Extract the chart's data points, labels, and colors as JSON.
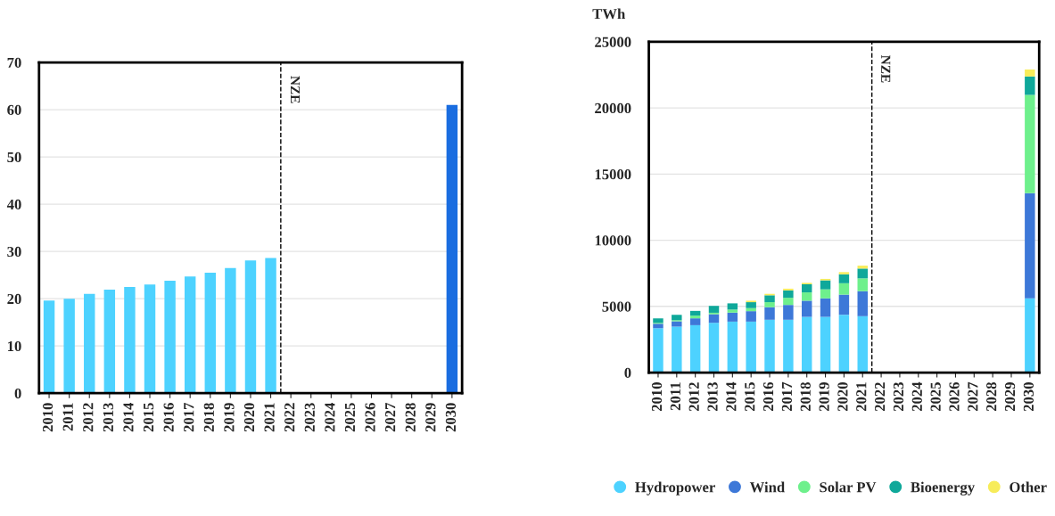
{
  "chart_data": [
    {
      "type": "bar",
      "categories": [
        "2010",
        "2011",
        "2012",
        "2013",
        "2014",
        "2015",
        "2016",
        "2017",
        "2018",
        "2019",
        "2020",
        "2021",
        "2022",
        "2023",
        "2024",
        "2025",
        "2026",
        "2027",
        "2028",
        "2029",
        "2030"
      ],
      "values": [
        19.6,
        20.0,
        21.0,
        21.9,
        22.5,
        23.0,
        23.8,
        24.7,
        25.5,
        26.5,
        28.1,
        28.6,
        null,
        null,
        null,
        null,
        null,
        null,
        null,
        null,
        61
      ],
      "colors": [
        "#4dd2ff",
        "#4dd2ff",
        "#4dd2ff",
        "#4dd2ff",
        "#4dd2ff",
        "#4dd2ff",
        "#4dd2ff",
        "#4dd2ff",
        "#4dd2ff",
        "#4dd2ff",
        "#4dd2ff",
        "#4dd2ff",
        "#4dd2ff",
        "#4dd2ff",
        "#4dd2ff",
        "#4dd2ff",
        "#4dd2ff",
        "#4dd2ff",
        "#4dd2ff",
        "#4dd2ff",
        "#1a6de0"
      ],
      "ylim": [
        0,
        70
      ],
      "yticks": [
        0,
        10,
        20,
        30,
        40,
        50,
        60,
        70
      ],
      "grid": "y",
      "ref_lines": [
        {
          "axis": "x",
          "value": "2022",
          "label": "NZE",
          "line_style": "dashed",
          "color": "#000000"
        }
      ]
    },
    {
      "type": "bar",
      "stacked": true,
      "ylabel": "TWh",
      "categories": [
        "2010",
        "2011",
        "2012",
        "2013",
        "2014",
        "2015",
        "2016",
        "2017",
        "2018",
        "2019",
        "2020",
        "2021",
        "2022",
        "2023",
        "2024",
        "2025",
        "2026",
        "2027",
        "2028",
        "2029",
        "2030"
      ],
      "series": [
        {
          "name": "Hydropower",
          "color": "#4dd2ff",
          "values": [
            3350,
            3470,
            3580,
            3760,
            3850,
            3850,
            3990,
            3990,
            4210,
            4210,
            4370,
            4260,
            null,
            null,
            null,
            null,
            null,
            null,
            null,
            null,
            5610
          ]
        },
        {
          "name": "Wind",
          "color": "#3d78d8",
          "values": [
            340,
            400,
            520,
            650,
            680,
            790,
            950,
            1120,
            1220,
            1400,
            1520,
            1890,
            null,
            null,
            null,
            null,
            null,
            null,
            null,
            null,
            7950
          ]
        },
        {
          "name": "Solar PV",
          "color": "#6ef08c",
          "values": [
            70,
            90,
            200,
            110,
            230,
            230,
            380,
            540,
            630,
            680,
            860,
            970,
            null,
            null,
            null,
            null,
            null,
            null,
            null,
            null,
            7430
          ]
        },
        {
          "name": "Bioenergy",
          "color": "#0fa89a",
          "values": [
            340,
            400,
            360,
            520,
            470,
            450,
            520,
            560,
            610,
            680,
            680,
            740,
            null,
            null,
            null,
            null,
            null,
            null,
            null,
            null,
            1400
          ]
        },
        {
          "name": "Other",
          "color": "#f7ec5a",
          "values": [
            null,
            null,
            null,
            null,
            null,
            110,
            110,
            130,
            110,
            110,
            160,
            220,
            null,
            null,
            null,
            null,
            null,
            null,
            null,
            null,
            510
          ]
        }
      ],
      "ylim": [
        0,
        25000
      ],
      "yticks": [
        0,
        5000,
        10000,
        15000,
        20000,
        25000
      ],
      "grid": "y",
      "legend": "bottom right",
      "ref_lines": [
        {
          "axis": "x",
          "value": "2022",
          "label": "NZE",
          "line_style": "dashed",
          "color": "#000000"
        }
      ]
    }
  ]
}
